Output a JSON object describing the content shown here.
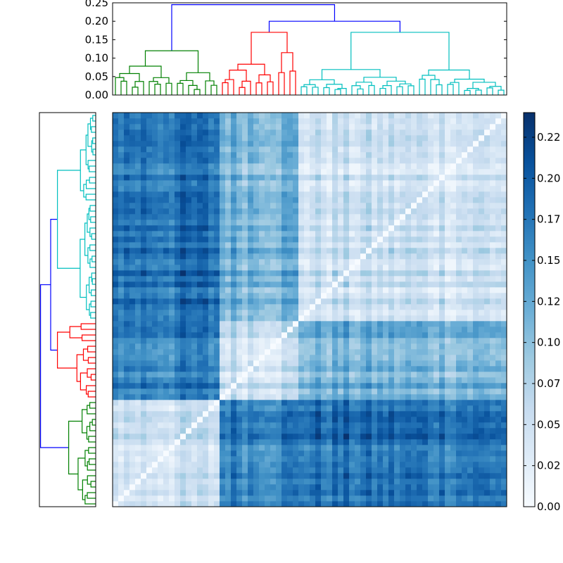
{
  "chart_data": {
    "type": "heatmap",
    "title": "",
    "description_free": true,
    "matrix_size": 70,
    "colormap": "Blues",
    "colorbar": {
      "vmin": 0.0,
      "vmax": 0.24,
      "ticks": [
        0.0,
        0.025,
        0.05,
        0.075,
        0.1,
        0.125,
        0.15,
        0.175,
        0.2,
        0.225
      ],
      "tick_labels": [
        "0.00",
        "0.02",
        "0.05",
        "0.07",
        "0.10",
        "0.12",
        "0.15",
        "0.17",
        "0.20",
        "0.22"
      ]
    },
    "top_dendrogram": {
      "ylim": [
        0.0,
        0.25
      ],
      "ticks": [
        0.0,
        0.05,
        0.1,
        0.15,
        0.2,
        0.25
      ],
      "tick_labels": [
        "0.00",
        "0.05",
        "0.10",
        "0.15",
        "0.20",
        "0.25"
      ],
      "root_height": 0.245,
      "clusters": [
        {
          "name": "green",
          "color": "#008000",
          "leaves": 19,
          "merge_height": 0.12
        },
        {
          "name": "red",
          "color": "#ff0000",
          "leaves": 14,
          "merge_height": 0.17
        },
        {
          "name": "cyan",
          "color": "#00bfbf",
          "leaves": 37,
          "merge_height": 0.17
        }
      ],
      "red_cyan_merge_height": 0.2,
      "link_color": "#0000ff"
    },
    "left_dendrogram": {
      "orientation": "left",
      "clusters_top_to_bottom": [
        "cyan",
        "red",
        "green"
      ]
    },
    "block_structure": {
      "within_cluster_distance": [
        0.03,
        0.08
      ],
      "between_cluster_distance": [
        0.1,
        0.22
      ],
      "diagonal": 0.0
    }
  }
}
